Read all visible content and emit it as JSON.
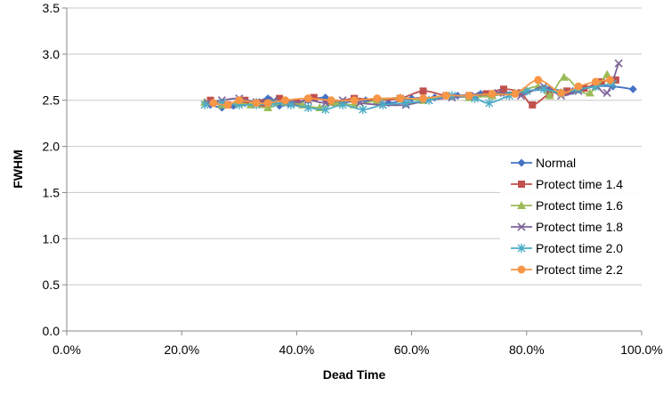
{
  "chart_data": {
    "type": "line",
    "title": "",
    "xlabel": "Dead Time",
    "ylabel": "FWHM",
    "xlim": [
      0.0,
      1.0
    ],
    "ylim": [
      0.0,
      3.5
    ],
    "x_ticks": [
      0.0,
      0.2,
      0.4,
      0.6,
      0.8,
      1.0
    ],
    "x_tick_labels": [
      "0.0%",
      "20.0%",
      "40.0%",
      "60.0%",
      "80.0%",
      "100.0%"
    ],
    "y_ticks": [
      0.0,
      0.5,
      1.0,
      1.5,
      2.0,
      2.5,
      3.0,
      3.5
    ],
    "y_tick_labels": [
      "0.0",
      "0.5",
      "1.0",
      "1.5",
      "2.0",
      "2.5",
      "3.0",
      "3.5"
    ],
    "grid": "horizontal",
    "legend_position": "right",
    "series": [
      {
        "name": "Normal",
        "color": "#4472C4",
        "marker": "diamond",
        "x": [
          0.25,
          0.27,
          0.29,
          0.31,
          0.33,
          0.35,
          0.37,
          0.4,
          0.42,
          0.45,
          0.48,
          0.52,
          0.56,
          0.6,
          0.64,
          0.68,
          0.72,
          0.76,
          0.8,
          0.84,
          0.88,
          0.92,
          0.95,
          0.985
        ],
        "y": [
          2.45,
          2.42,
          2.44,
          2.47,
          2.48,
          2.52,
          2.44,
          2.47,
          2.5,
          2.53,
          2.48,
          2.5,
          2.47,
          2.52,
          2.53,
          2.55,
          2.57,
          2.58,
          2.6,
          2.62,
          2.6,
          2.65,
          2.65,
          2.62
        ]
      },
      {
        "name": "Protect time 1.4",
        "color": "#C0504D",
        "marker": "square",
        "x": [
          0.25,
          0.28,
          0.31,
          0.34,
          0.37,
          0.4,
          0.43,
          0.46,
          0.5,
          0.54,
          0.58,
          0.62,
          0.66,
          0.7,
          0.73,
          0.76,
          0.79,
          0.81,
          0.84,
          0.87,
          0.9,
          0.93,
          0.955
        ],
        "y": [
          2.5,
          2.45,
          2.5,
          2.47,
          2.52,
          2.48,
          2.53,
          2.48,
          2.52,
          2.5,
          2.52,
          2.6,
          2.55,
          2.55,
          2.57,
          2.62,
          2.58,
          2.45,
          2.57,
          2.6,
          2.63,
          2.7,
          2.72
        ]
      },
      {
        "name": "Protect time 1.6",
        "color": "#9BBB59",
        "marker": "triangle",
        "x": [
          0.24,
          0.27,
          0.3,
          0.32,
          0.35,
          0.38,
          0.41,
          0.44,
          0.47,
          0.5,
          0.54,
          0.58,
          0.62,
          0.66,
          0.7,
          0.74,
          0.78,
          0.82,
          0.84,
          0.865,
          0.89,
          0.91,
          0.94
        ],
        "y": [
          2.48,
          2.45,
          2.47,
          2.45,
          2.42,
          2.48,
          2.45,
          2.42,
          2.47,
          2.45,
          2.5,
          2.53,
          2.5,
          2.55,
          2.53,
          2.55,
          2.58,
          2.65,
          2.55,
          2.75,
          2.62,
          2.58,
          2.78
        ]
      },
      {
        "name": "Protect time 1.8",
        "color": "#7E6398",
        "marker": "x",
        "x": [
          0.245,
          0.27,
          0.3,
          0.33,
          0.36,
          0.39,
          0.42,
          0.45,
          0.48,
          0.51,
          0.55,
          0.59,
          0.63,
          0.67,
          0.71,
          0.75,
          0.79,
          0.83,
          0.86,
          0.89,
          0.92,
          0.94,
          0.96
        ],
        "y": [
          2.47,
          2.5,
          2.52,
          2.48,
          2.5,
          2.47,
          2.5,
          2.47,
          2.5,
          2.47,
          2.45,
          2.45,
          2.5,
          2.53,
          2.55,
          2.58,
          2.55,
          2.65,
          2.55,
          2.6,
          2.65,
          2.58,
          2.9
        ]
      },
      {
        "name": "Protect time 2.0",
        "color": "#4BACC6",
        "marker": "star",
        "x": [
          0.24,
          0.27,
          0.3,
          0.33,
          0.36,
          0.39,
          0.42,
          0.45,
          0.48,
          0.515,
          0.55,
          0.59,
          0.63,
          0.67,
          0.71,
          0.735,
          0.77,
          0.8,
          0.83,
          0.86,
          0.89,
          0.92,
          0.95
        ],
        "y": [
          2.45,
          2.47,
          2.45,
          2.45,
          2.47,
          2.45,
          2.42,
          2.4,
          2.45,
          2.4,
          2.45,
          2.47,
          2.5,
          2.55,
          2.52,
          2.47,
          2.55,
          2.6,
          2.62,
          2.58,
          2.62,
          2.65,
          2.68
        ]
      },
      {
        "name": "Protect time 2.2",
        "color": "#F79646",
        "marker": "circle",
        "x": [
          0.255,
          0.28,
          0.3,
          0.33,
          0.35,
          0.38,
          0.42,
          0.46,
          0.5,
          0.54,
          0.58,
          0.62,
          0.66,
          0.7,
          0.74,
          0.78,
          0.82,
          0.86,
          0.89,
          0.92,
          0.945
        ],
        "y": [
          2.47,
          2.45,
          2.5,
          2.47,
          2.47,
          2.5,
          2.52,
          2.5,
          2.5,
          2.52,
          2.52,
          2.52,
          2.55,
          2.55,
          2.57,
          2.57,
          2.72,
          2.58,
          2.65,
          2.7,
          2.72
        ]
      }
    ]
  }
}
